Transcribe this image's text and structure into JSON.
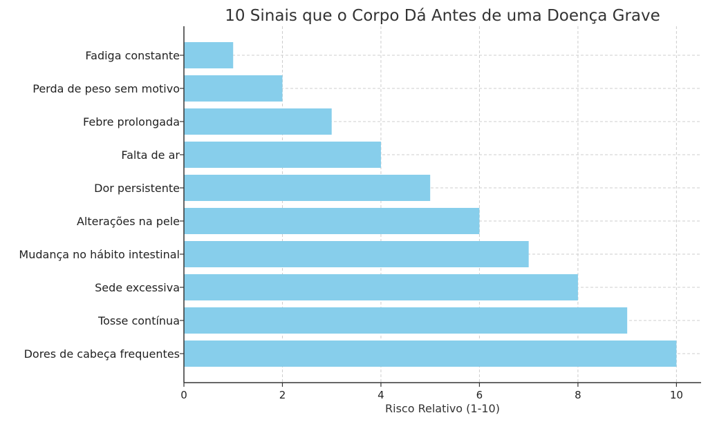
{
  "chart_data": {
    "type": "bar",
    "orientation": "horizontal",
    "title": "10 Sinais que o Corpo Dá Antes de uma Doença Grave",
    "xlabel": "Risco Relativo (1-10)",
    "ylabel": "",
    "categories": [
      "Fadiga constante",
      "Perda de peso sem motivo",
      "Febre prolongada",
      "Falta de ar",
      "Dor persistente",
      "Alterações na pele",
      "Mudança no hábito intestinal",
      "Sede excessiva",
      "Tosse contínua",
      "Dores de cabeça frequentes"
    ],
    "values": [
      1,
      2,
      3,
      4,
      5,
      6,
      7,
      8,
      9,
      10
    ],
    "xlim": [
      0,
      10.5
    ],
    "xticks": [
      0,
      2,
      4,
      6,
      8,
      10
    ],
    "grid": true,
    "bar_color": "#87ceeb"
  }
}
